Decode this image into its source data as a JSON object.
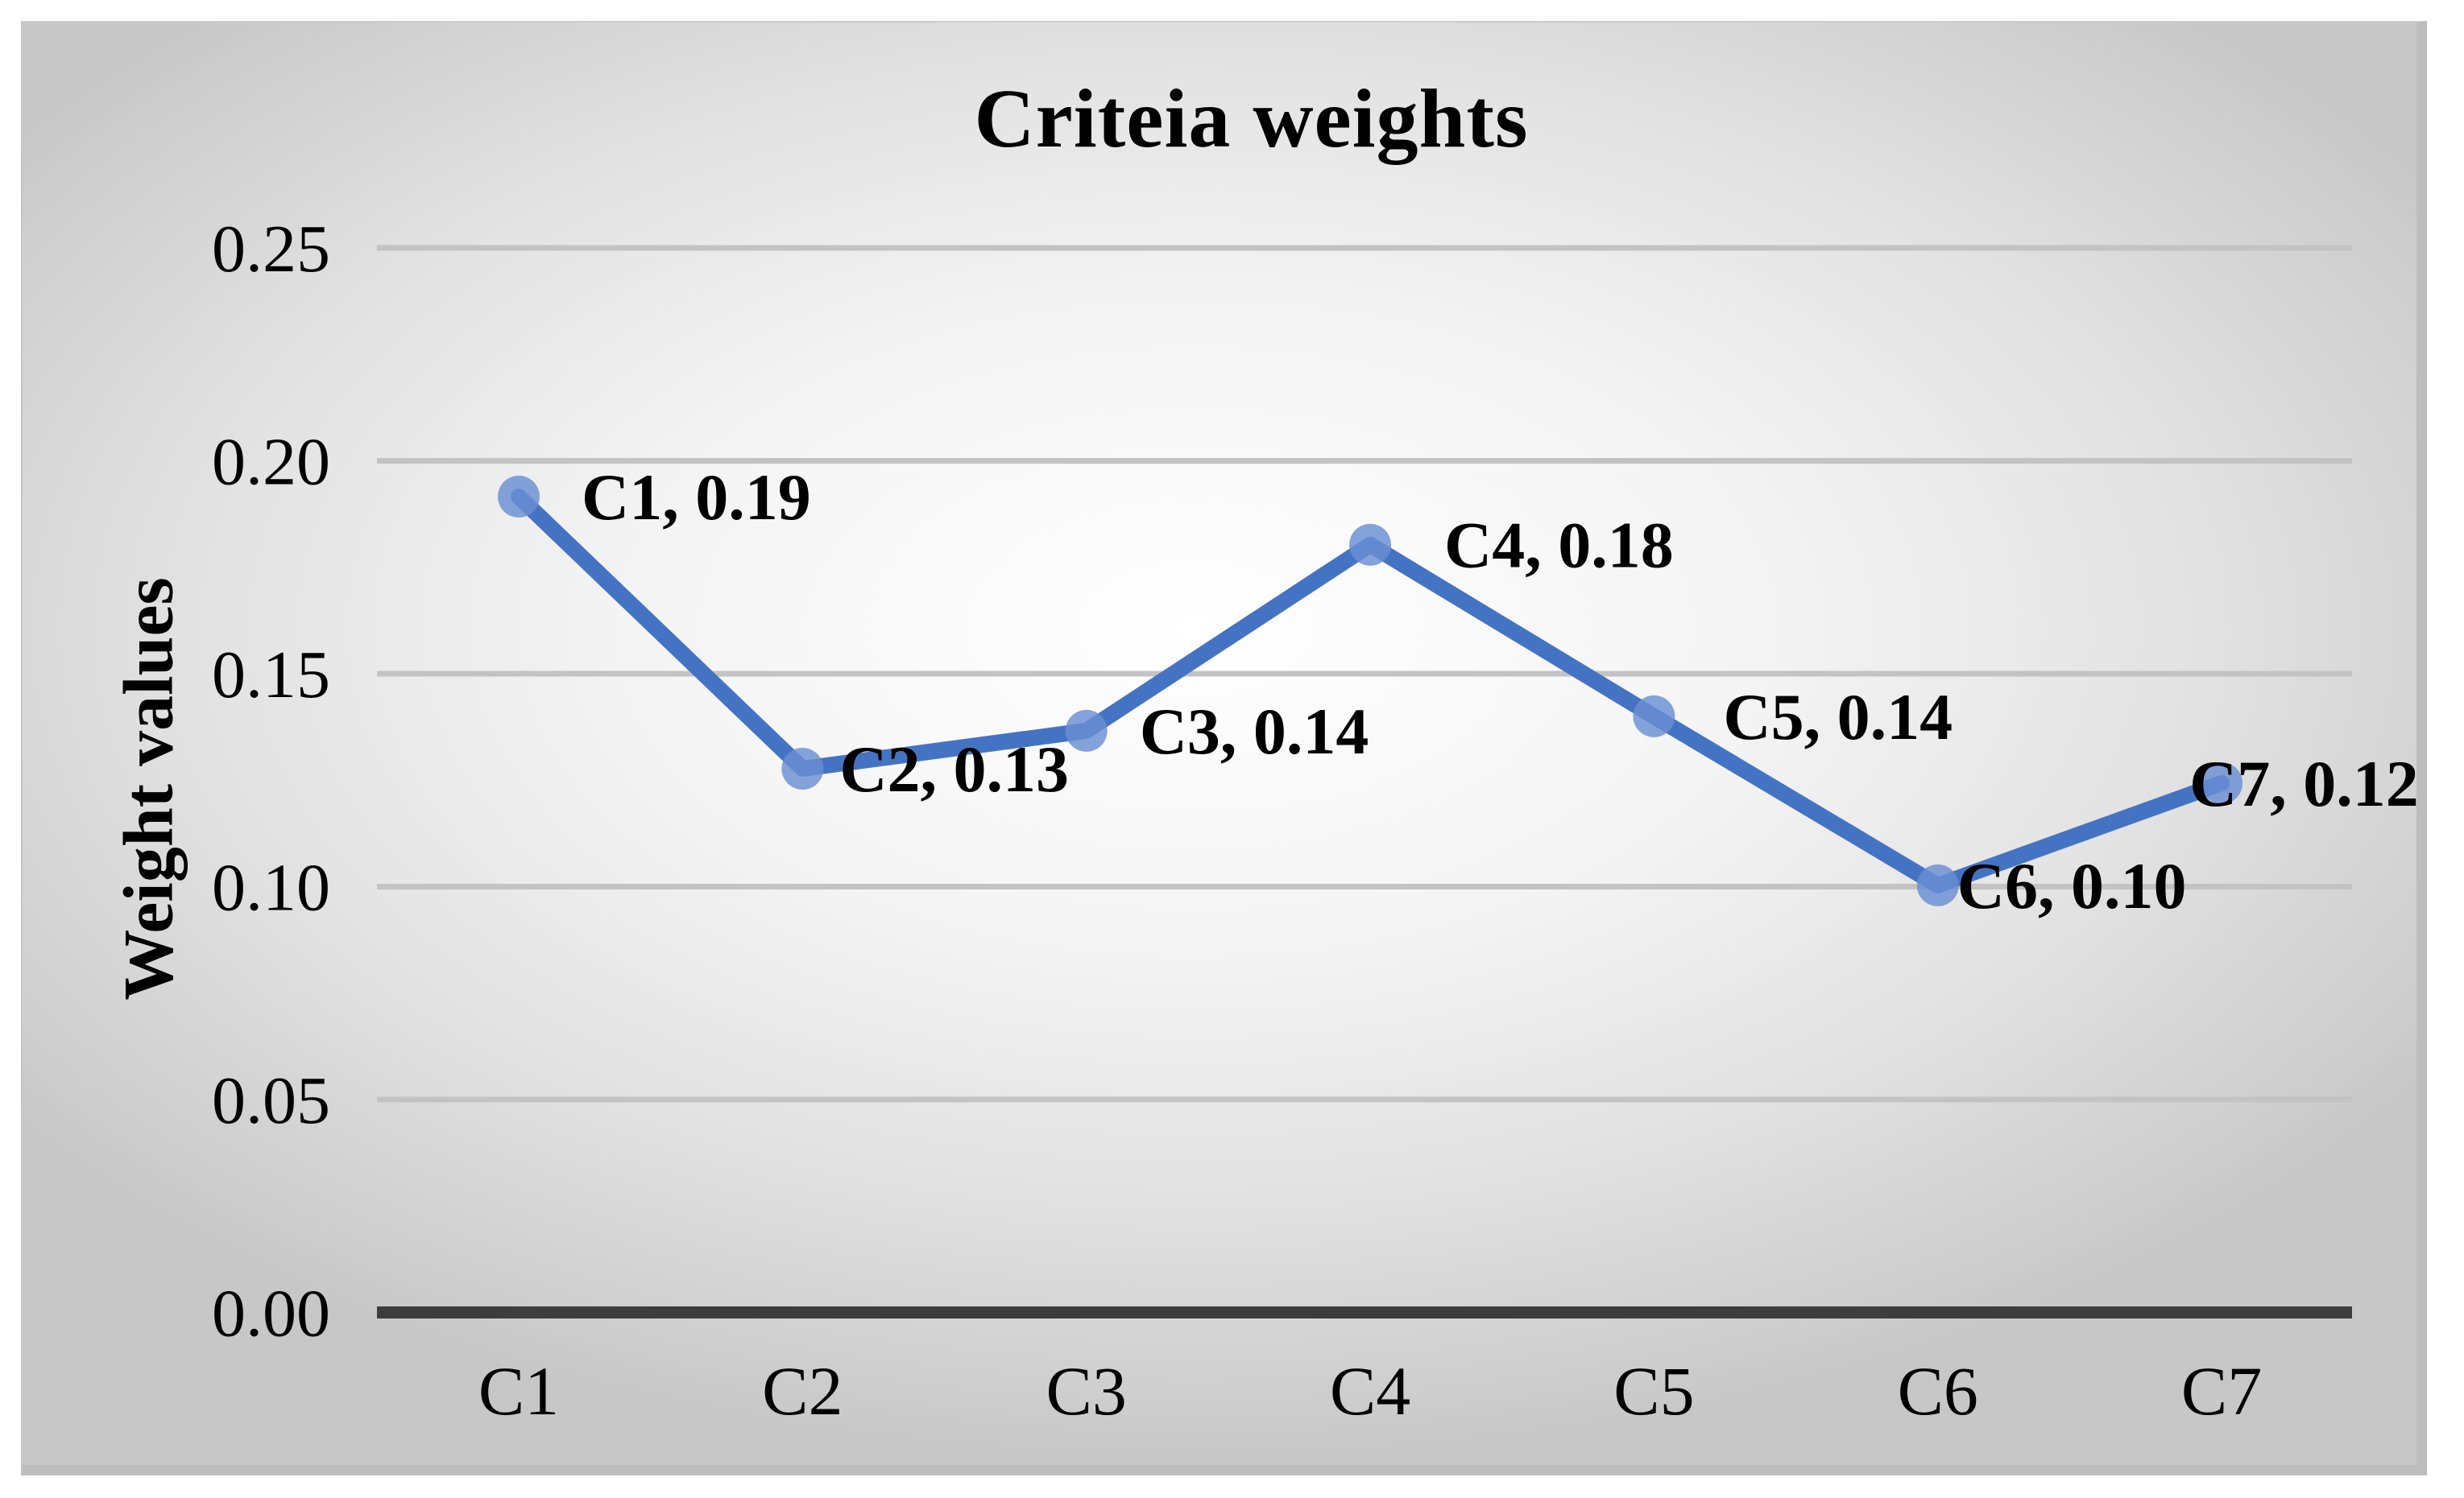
{
  "chart_data": {
    "type": "line",
    "title": "Criteia weights",
    "ylabel": "Weight values",
    "xlabel": "",
    "categories": [
      "C1",
      "C2",
      "C3",
      "C4",
      "C5",
      "C6",
      "C7"
    ],
    "series": [
      {
        "name": "Criteria weights",
        "values": [
          0.19,
          0.13,
          0.14,
          0.18,
          0.14,
          0.1,
          0.12
        ]
      }
    ],
    "precise_values": [
      0.1916,
      0.1277,
      0.1366,
      0.1803,
      0.14,
      0.1003,
      0.1243
    ],
    "point_labels": [
      "C1, 0.19",
      "C2, 0.13",
      "C3, 0.14",
      "C4, 0.18",
      "C5, 0.14",
      "C6, 0.10",
      "C7, 0.12"
    ],
    "label_dx": [
      78,
      46,
      66,
      92,
      86,
      24,
      -40
    ],
    "yticks": [
      "0.00",
      "0.05",
      "0.10",
      "0.15",
      "0.20",
      "0.25"
    ],
    "ylim": [
      0,
      0.25
    ],
    "ytick_step": 0.05,
    "grid": true,
    "legend_position": "none",
    "colors": {
      "line": "#4573c4",
      "marker": "#6a8fd3",
      "grid": "#c3c3c3",
      "axis": "#3d3d3d",
      "text": "#000000"
    }
  }
}
